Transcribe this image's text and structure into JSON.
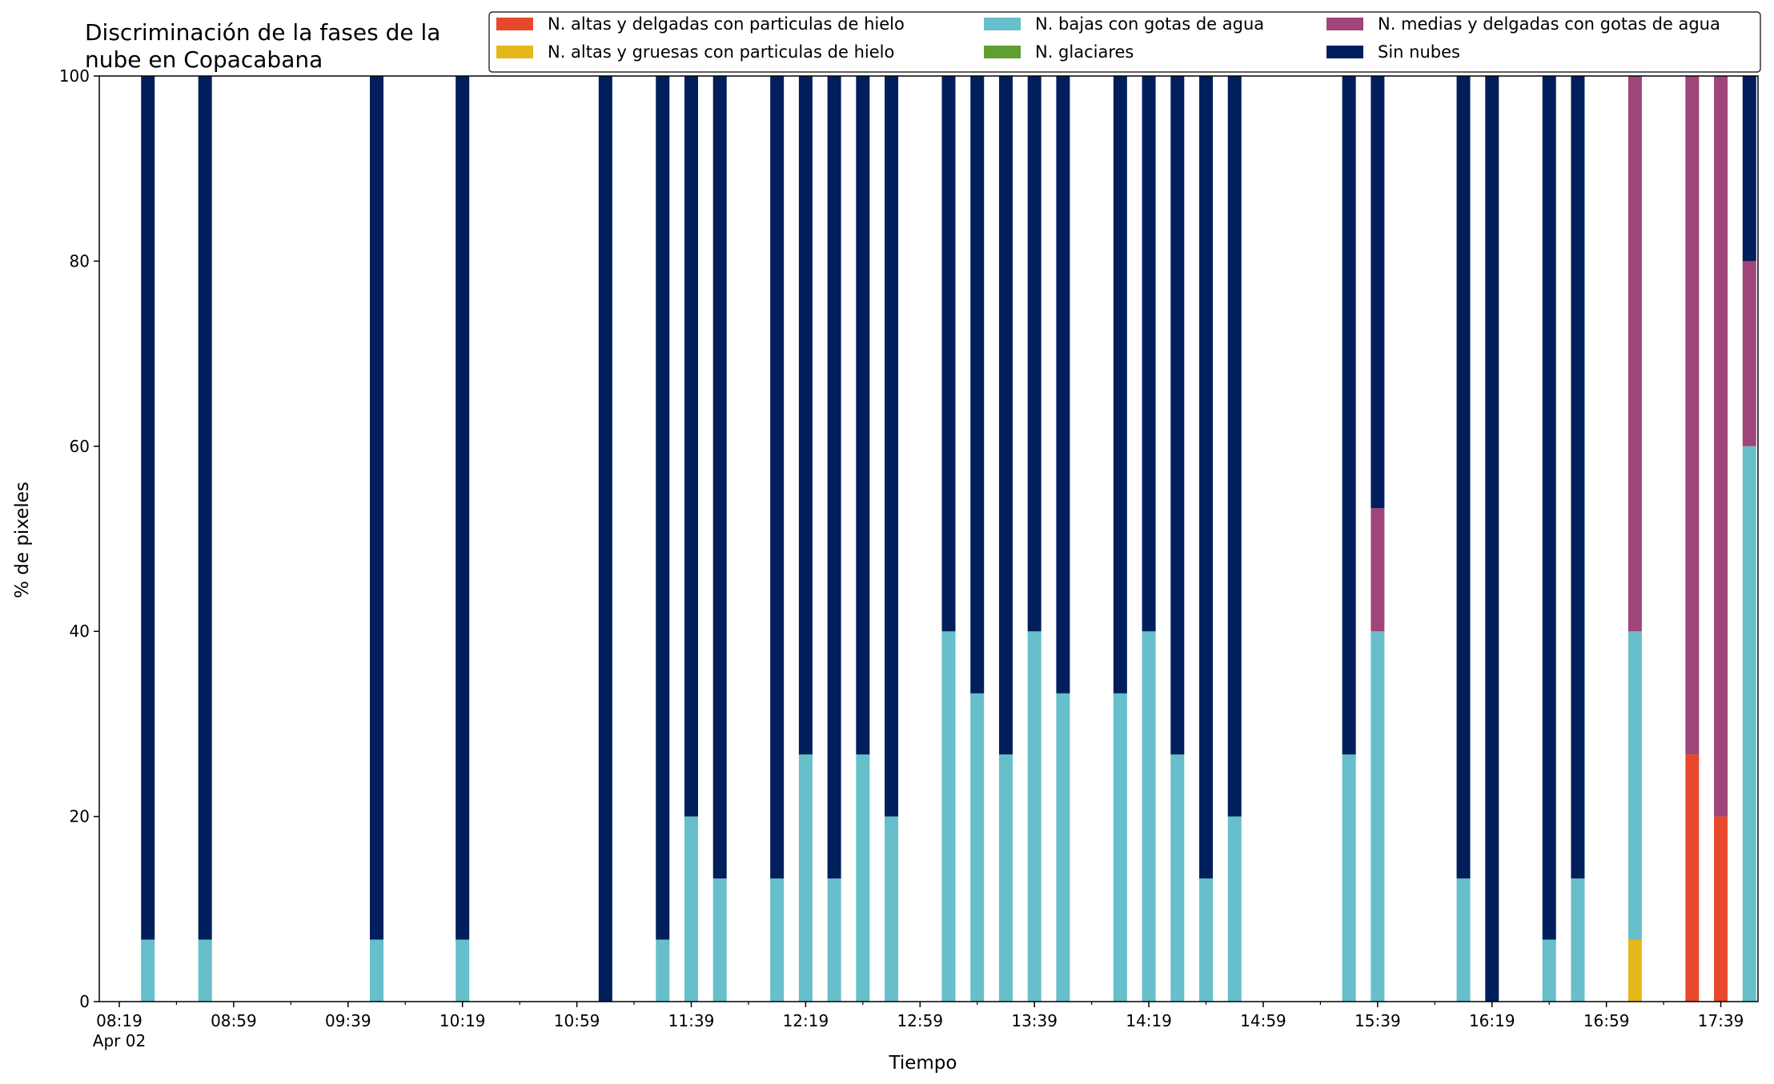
{
  "chart_data": {
    "type": "bar",
    "stacked": true,
    "title_lines": [
      "Discriminación de la fases de la",
      "nube en Copacabana"
    ],
    "xlabel": "Tiempo",
    "ylabel": "% de pixeles",
    "ylim": [
      0,
      100
    ],
    "yticks": [
      0,
      20,
      40,
      60,
      80,
      100
    ],
    "xlim": [
      "08:12",
      "17:52"
    ],
    "x_tick_labels": [
      "08:19",
      "08:59",
      "09:39",
      "10:19",
      "10:59",
      "11:39",
      "12:19",
      "12:59",
      "13:39",
      "14:19",
      "14:59",
      "15:39",
      "16:19",
      "16:59",
      "17:39"
    ],
    "x_tick_sublabel": "Apr 02",
    "minor_tick_interval_minutes": 20,
    "grid": false,
    "legend_position": "top-right",
    "x": [
      "08:29",
      "08:49",
      "09:49",
      "10:19",
      "11:09",
      "11:29",
      "11:39",
      "11:49",
      "12:09",
      "12:19",
      "12:29",
      "12:39",
      "12:49",
      "13:09",
      "13:19",
      "13:29",
      "13:39",
      "13:49",
      "14:09",
      "14:19",
      "14:29",
      "14:39",
      "14:49",
      "15:29",
      "15:39",
      "16:09",
      "16:19",
      "16:39",
      "16:49",
      "17:09",
      "17:29",
      "17:39",
      "17:49"
    ],
    "series": [
      {
        "name": "N. altas y delgadas con particulas de hielo",
        "color": "#e8482c",
        "values": [
          0,
          0,
          0,
          0,
          0,
          0,
          0,
          0,
          0,
          0,
          0,
          0,
          0,
          0,
          0,
          0,
          0,
          0,
          0,
          0,
          0,
          0,
          0,
          0,
          0,
          0,
          0,
          0,
          0,
          0,
          26.7,
          20,
          0
        ]
      },
      {
        "name": "N. altas y gruesas con particulas de hielo",
        "color": "#e5b81a",
        "values": [
          0,
          0,
          0,
          0,
          0,
          0,
          0,
          0,
          0,
          0,
          0,
          0,
          0,
          0,
          0,
          0,
          0,
          0,
          0,
          0,
          0,
          0,
          0,
          0,
          0,
          0,
          0,
          0,
          0,
          6.7,
          0,
          0,
          0
        ]
      },
      {
        "name": "N. bajas con gotas de agua",
        "color": "#66bfca",
        "values": [
          6.7,
          6.7,
          6.7,
          6.7,
          0,
          6.7,
          20,
          13.3,
          13.3,
          26.7,
          13.3,
          26.7,
          20,
          40,
          33.3,
          26.7,
          40,
          33.3,
          33.3,
          40,
          26.7,
          13.3,
          20,
          26.7,
          40,
          13.3,
          0,
          6.7,
          13.3,
          33.3,
          0,
          0,
          60
        ]
      },
      {
        "name": "N. glaciares",
        "color": "#5f9e2f",
        "values": [
          0,
          0,
          0,
          0,
          0,
          0,
          0,
          0,
          0,
          0,
          0,
          0,
          0,
          0,
          0,
          0,
          0,
          0,
          0,
          0,
          0,
          0,
          0,
          0,
          0,
          0,
          0,
          0,
          0,
          0,
          0,
          0,
          0
        ]
      },
      {
        "name": "N. medias y delgadas con gotas de agua",
        "color": "#a0457a",
        "values": [
          0,
          0,
          0,
          0,
          0,
          0,
          0,
          0,
          0,
          0,
          0,
          0,
          0,
          0,
          0,
          0,
          0,
          0,
          0,
          0,
          0,
          0,
          0,
          0,
          13.3,
          0,
          0,
          0,
          0,
          60,
          73.3,
          80,
          20
        ]
      },
      {
        "name": "Sin nubes",
        "color": "#001f5c",
        "values": [
          93.3,
          93.3,
          93.3,
          93.3,
          100,
          93.3,
          80,
          86.7,
          86.7,
          73.3,
          86.7,
          73.3,
          80,
          60,
          66.7,
          73.3,
          60,
          66.7,
          66.7,
          60,
          73.3,
          86.7,
          80,
          73.3,
          46.7,
          86.7,
          100,
          93.3,
          86.7,
          0,
          0,
          0,
          20
        ]
      }
    ]
  }
}
